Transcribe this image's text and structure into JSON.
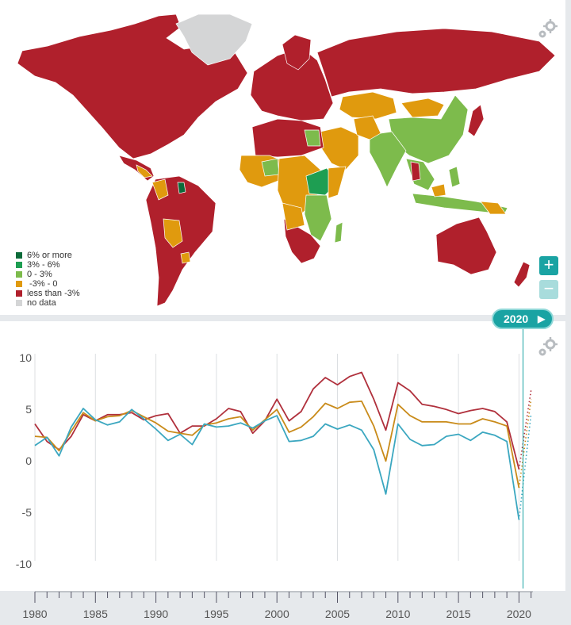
{
  "map": {
    "legend": [
      {
        "label": "6% or more",
        "color": "#0b6b3a"
      },
      {
        "label": "3% - 6%",
        "color": "#1e9e52"
      },
      {
        "label": "0 - 3%",
        "color": "#7dbb4c"
      },
      {
        "label": " -3% - 0",
        "color": "#e09a0e"
      },
      {
        "label": "less than -3%",
        "color": "#b0202c"
      },
      {
        "label": "no data",
        "color": "#d4d5d6"
      }
    ],
    "zoom_in_label": "+",
    "zoom_out_label": "−",
    "settings_icon": "gear-icon"
  },
  "timeline": {
    "year": "2020",
    "play_icon": "▶"
  },
  "chart_data": {
    "type": "line",
    "x": [
      1980,
      1981,
      1982,
      1983,
      1984,
      1985,
      1986,
      1987,
      1988,
      1989,
      1990,
      1991,
      1992,
      1993,
      1994,
      1995,
      1996,
      1997,
      1998,
      1999,
      2000,
      2001,
      2002,
      2003,
      2004,
      2005,
      2006,
      2007,
      2008,
      2009,
      2010,
      2011,
      2012,
      2013,
      2014,
      2015,
      2016,
      2017,
      2018,
      2019,
      2020
    ],
    "ylim": [
      -10,
      10
    ],
    "xlim": [
      1980,
      2021
    ],
    "yticks": [
      10,
      5,
      0,
      -5,
      -10
    ],
    "xticks": [
      1980,
      1985,
      1990,
      1995,
      2000,
      2005,
      2010,
      2015,
      2020
    ],
    "grid": "vertical",
    "series": [
      {
        "color": "#b0303c",
        "values": [
          3.5,
          1.8,
          1.0,
          2.3,
          4.4,
          3.8,
          4.4,
          4.4,
          4.6,
          3.9,
          4.3,
          4.5,
          2.6,
          3.3,
          3.3,
          4.0,
          5.0,
          4.7,
          2.6,
          3.8,
          5.9,
          3.8,
          4.7,
          6.9,
          8.0,
          7.3,
          8.1,
          8.5,
          5.9,
          2.9,
          7.5,
          6.7,
          5.4,
          5.2,
          4.9,
          4.5,
          4.8,
          5.0,
          4.7,
          3.7,
          -0.9
        ]
      },
      {
        "color": "#c98b1a",
        "values": [
          2.3,
          2.2,
          0.9,
          2.8,
          4.6,
          3.8,
          4.2,
          4.3,
          4.8,
          4.2,
          3.6,
          2.8,
          2.6,
          2.4,
          3.4,
          3.6,
          4.0,
          4.2,
          2.9,
          3.9,
          4.9,
          2.7,
          3.2,
          4.2,
          5.5,
          5.0,
          5.6,
          5.7,
          3.3,
          -0.1,
          5.4,
          4.3,
          3.7,
          3.7,
          3.7,
          3.5,
          3.5,
          4.0,
          3.7,
          3.3,
          -2.7
        ]
      },
      {
        "color": "#3ba7c0",
        "values": [
          1.4,
          2.2,
          0.4,
          3.2,
          5.0,
          3.9,
          3.4,
          3.7,
          4.9,
          4.0,
          3.0,
          1.9,
          2.5,
          1.5,
          3.5,
          3.2,
          3.3,
          3.6,
          3.1,
          3.8,
          4.3,
          1.8,
          1.9,
          2.3,
          3.5,
          3.0,
          3.4,
          2.9,
          1.0,
          -3.3,
          3.5,
          2.0,
          1.4,
          1.5,
          2.3,
          2.5,
          1.9,
          2.7,
          2.4,
          1.8,
          -5.8
        ]
      }
    ],
    "projection": {
      "x": [
        2020,
        2021
      ],
      "values": [
        [
          -0.9,
          6.8
        ],
        [
          -2.7,
          5.9
        ],
        [
          -5.8,
          4.5
        ]
      ]
    }
  }
}
